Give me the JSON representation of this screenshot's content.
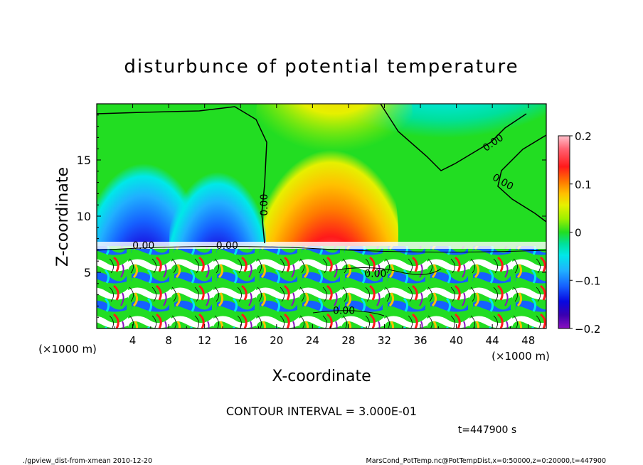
{
  "chart_data": {
    "type": "heatmap",
    "title": "disturbunce of potential temperature",
    "xlabel": "X-coordinate",
    "ylabel": "Z-coordinate",
    "x_unit": "(×1000 m)",
    "y_unit": "(×1000 m)",
    "xlim": [
      0,
      50
    ],
    "ylim": [
      0,
      20
    ],
    "x_ticks": [
      "4",
      "8",
      "12",
      "16",
      "20",
      "24",
      "28",
      "32",
      "36",
      "40",
      "44",
      "48"
    ],
    "y_ticks": [
      "5",
      "10",
      "15"
    ],
    "colorbar": {
      "range": [
        -0.2,
        0.2
      ],
      "ticks": [
        "0.2",
        "0.1",
        "0",
        "−0.1",
        "−0.2"
      ]
    },
    "contour_labels": [
      "0.00",
      "0.00",
      "0.00",
      "0.00",
      "0.00",
      "0.00",
      "0.00"
    ],
    "interval_note": "CONTOUR INTERVAL = 3.000E-01",
    "time_label": "t=447900 s"
  },
  "footer": {
    "left": "./gpview_dist-from-xmean  2010-12-20",
    "right": "MarsCond_PotTemp.nc@PotTempDist,x=0:50000,z=0:20000,t=447900"
  }
}
